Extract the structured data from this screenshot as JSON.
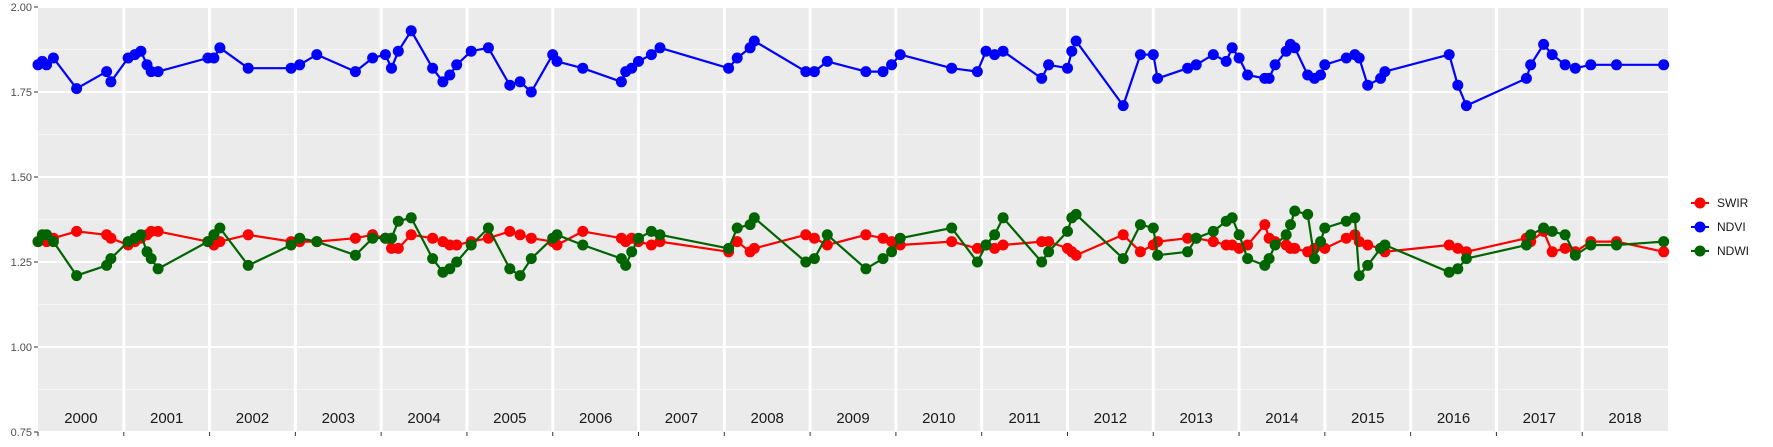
{
  "chart_data": {
    "type": "line",
    "title": "",
    "xlabel": "",
    "ylabel": "",
    "ylim": [
      0.75,
      2.0
    ],
    "yticks": [
      "0.75",
      "1.00",
      "1.25",
      "1.50",
      "1.75",
      "2.00"
    ],
    "ytick_values": [
      0.75,
      1.0,
      1.25,
      1.5,
      1.75,
      2.0
    ],
    "xlim": [
      2000.0,
      2019.0
    ],
    "year_labels": [
      "2000",
      "2001",
      "2002",
      "2003",
      "2004",
      "2005",
      "2006",
      "2007",
      "2008",
      "2009",
      "2010",
      "2011",
      "2012",
      "2013",
      "2014",
      "2015",
      "2016",
      "2017",
      "2018"
    ],
    "year_starts": [
      2000,
      2001,
      2002,
      2003,
      2004,
      2005,
      2006,
      2007,
      2008,
      2009,
      2010,
      2011,
      2012,
      2013,
      2014,
      2015,
      2016,
      2017,
      2018
    ],
    "grid": true,
    "legend_position": "right",
    "series": [
      {
        "name": "SWIR",
        "color": "#ff0000",
        "x": [
          2000.0,
          2000.05,
          2000.1,
          2000.18,
          2000.45,
          2000.8,
          2000.85,
          2001.05,
          2001.13,
          2001.2,
          2001.27,
          2001.32,
          2001.4,
          2001.98,
          2002.05,
          2002.12,
          2002.45,
          2002.95,
          2003.05,
          2003.25,
          2003.7,
          2003.9,
          2004.05,
          2004.12,
          2004.2,
          2004.35,
          2004.6,
          2004.72,
          2004.8,
          2004.88,
          2005.05,
          2005.25,
          2005.5,
          2005.62,
          2005.75,
          2006.0,
          2006.05,
          2006.35,
          2006.8,
          2006.85,
          2006.92,
          2007.0,
          2007.15,
          2007.25,
          2008.05,
          2008.15,
          2008.3,
          2008.35,
          2008.95,
          2009.05,
          2009.2,
          2009.65,
          2009.85,
          2009.95,
          2010.05,
          2010.65,
          2010.95,
          2011.05,
          2011.15,
          2011.25,
          2011.7,
          2011.78,
          2012.0,
          2012.05,
          2012.1,
          2012.65,
          2012.85,
          2013.0,
          2013.05,
          2013.4,
          2013.5,
          2013.7,
          2013.85,
          2013.92,
          2014.0,
          2014.1,
          2014.3,
          2014.35,
          2014.42,
          2014.55,
          2014.6,
          2014.65,
          2014.8,
          2014.88,
          2014.95,
          2015.0,
          2015.25,
          2015.35,
          2015.4,
          2015.5,
          2015.65,
          2015.7,
          2016.45,
          2016.55,
          2016.65,
          2017.35,
          2017.4,
          2017.55,
          2017.65,
          2017.8,
          2017.92,
          2018.1,
          2018.4,
          2018.95
        ],
        "y": [
          1.31,
          1.32,
          1.31,
          1.32,
          1.34,
          1.33,
          1.32,
          1.3,
          1.31,
          1.32,
          1.33,
          1.34,
          1.34,
          1.31,
          1.3,
          1.31,
          1.33,
          1.31,
          1.31,
          1.31,
          1.32,
          1.33,
          1.32,
          1.29,
          1.29,
          1.33,
          1.32,
          1.31,
          1.3,
          1.3,
          1.31,
          1.32,
          1.34,
          1.33,
          1.32,
          1.31,
          1.3,
          1.34,
          1.32,
          1.31,
          1.32,
          1.31,
          1.3,
          1.31,
          1.28,
          1.31,
          1.28,
          1.29,
          1.33,
          1.32,
          1.3,
          1.33,
          1.32,
          1.31,
          1.3,
          1.31,
          1.29,
          1.3,
          1.29,
          1.3,
          1.31,
          1.31,
          1.29,
          1.28,
          1.27,
          1.33,
          1.28,
          1.3,
          1.31,
          1.32,
          1.32,
          1.31,
          1.3,
          1.3,
          1.29,
          1.3,
          1.36,
          1.32,
          1.31,
          1.3,
          1.29,
          1.29,
          1.28,
          1.29,
          1.3,
          1.29,
          1.32,
          1.33,
          1.31,
          1.3,
          1.29,
          1.28,
          1.3,
          1.29,
          1.28,
          1.32,
          1.31,
          1.34,
          1.28,
          1.29,
          1.28,
          1.31,
          1.31,
          1.28
        ]
      },
      {
        "name": "NDVI",
        "color": "#0000ff",
        "x": [
          2000.0,
          2000.05,
          2000.1,
          2000.18,
          2000.45,
          2000.8,
          2000.85,
          2001.05,
          2001.13,
          2001.2,
          2001.27,
          2001.32,
          2001.4,
          2001.98,
          2002.05,
          2002.12,
          2002.45,
          2002.95,
          2003.05,
          2003.25,
          2003.7,
          2003.9,
          2004.05,
          2004.12,
          2004.2,
          2004.35,
          2004.6,
          2004.72,
          2004.8,
          2004.88,
          2005.05,
          2005.25,
          2005.5,
          2005.62,
          2005.75,
          2006.0,
          2006.05,
          2006.35,
          2006.8,
          2006.85,
          2006.92,
          2007.0,
          2007.15,
          2007.25,
          2008.05,
          2008.15,
          2008.3,
          2008.35,
          2008.95,
          2009.05,
          2009.2,
          2009.65,
          2009.85,
          2009.95,
          2010.05,
          2010.65,
          2010.95,
          2011.05,
          2011.15,
          2011.25,
          2011.7,
          2011.78,
          2012.0,
          2012.05,
          2012.1,
          2012.65,
          2012.85,
          2013.0,
          2013.05,
          2013.4,
          2013.5,
          2013.7,
          2013.85,
          2013.92,
          2014.0,
          2014.1,
          2014.3,
          2014.35,
          2014.42,
          2014.55,
          2014.6,
          2014.65,
          2014.8,
          2014.88,
          2014.95,
          2015.0,
          2015.25,
          2015.35,
          2015.4,
          2015.5,
          2015.65,
          2015.7,
          2016.45,
          2016.55,
          2016.65,
          2017.35,
          2017.4,
          2017.55,
          2017.65,
          2017.8,
          2017.92,
          2018.1,
          2018.4,
          2018.95
        ],
        "y": [
          1.83,
          1.84,
          1.83,
          1.85,
          1.76,
          1.81,
          1.78,
          1.85,
          1.86,
          1.87,
          1.83,
          1.81,
          1.81,
          1.85,
          1.85,
          1.88,
          1.82,
          1.82,
          1.83,
          1.86,
          1.81,
          1.85,
          1.86,
          1.82,
          1.87,
          1.93,
          1.82,
          1.78,
          1.8,
          1.83,
          1.87,
          1.88,
          1.77,
          1.78,
          1.75,
          1.86,
          1.84,
          1.82,
          1.78,
          1.81,
          1.82,
          1.84,
          1.86,
          1.88,
          1.82,
          1.85,
          1.88,
          1.9,
          1.81,
          1.81,
          1.84,
          1.81,
          1.81,
          1.83,
          1.86,
          1.82,
          1.81,
          1.87,
          1.86,
          1.87,
          1.79,
          1.83,
          1.82,
          1.87,
          1.9,
          1.71,
          1.86,
          1.86,
          1.79,
          1.82,
          1.83,
          1.86,
          1.84,
          1.88,
          1.85,
          1.8,
          1.79,
          1.79,
          1.83,
          1.87,
          1.89,
          1.88,
          1.8,
          1.79,
          1.8,
          1.83,
          1.85,
          1.86,
          1.85,
          1.77,
          1.79,
          1.81,
          1.86,
          1.77,
          1.71,
          1.79,
          1.83,
          1.89,
          1.86,
          1.83,
          1.82,
          1.83,
          1.83,
          1.83
        ]
      },
      {
        "name": "NDWI",
        "color": "#006400",
        "x": [
          2000.0,
          2000.05,
          2000.1,
          2000.18,
          2000.45,
          2000.8,
          2000.85,
          2001.05,
          2001.13,
          2001.2,
          2001.27,
          2001.32,
          2001.4,
          2001.98,
          2002.05,
          2002.12,
          2002.45,
          2002.95,
          2003.05,
          2003.25,
          2003.7,
          2003.9,
          2004.05,
          2004.12,
          2004.2,
          2004.35,
          2004.6,
          2004.72,
          2004.8,
          2004.88,
          2005.05,
          2005.25,
          2005.5,
          2005.62,
          2005.75,
          2006.0,
          2006.05,
          2006.35,
          2006.8,
          2006.85,
          2006.92,
          2007.0,
          2007.15,
          2007.25,
          2008.05,
          2008.15,
          2008.3,
          2008.35,
          2008.95,
          2009.05,
          2009.2,
          2009.65,
          2009.85,
          2009.95,
          2010.05,
          2010.65,
          2010.95,
          2011.05,
          2011.15,
          2011.25,
          2011.7,
          2011.78,
          2012.0,
          2012.05,
          2012.1,
          2012.65,
          2012.85,
          2013.0,
          2013.05,
          2013.4,
          2013.5,
          2013.7,
          2013.85,
          2013.92,
          2014.0,
          2014.1,
          2014.3,
          2014.35,
          2014.42,
          2014.55,
          2014.6,
          2014.65,
          2014.8,
          2014.88,
          2014.95,
          2015.0,
          2015.25,
          2015.35,
          2015.4,
          2015.5,
          2015.65,
          2015.7,
          2016.45,
          2016.55,
          2016.65,
          2017.35,
          2017.4,
          2017.55,
          2017.65,
          2017.8,
          2017.92,
          2018.1,
          2018.4,
          2018.95
        ],
        "y": [
          1.31,
          1.33,
          1.33,
          1.31,
          1.21,
          1.24,
          1.26,
          1.31,
          1.32,
          1.33,
          1.28,
          1.26,
          1.23,
          1.31,
          1.33,
          1.35,
          1.24,
          1.3,
          1.32,
          1.31,
          1.27,
          1.32,
          1.32,
          1.32,
          1.37,
          1.38,
          1.26,
          1.22,
          1.23,
          1.25,
          1.3,
          1.35,
          1.23,
          1.21,
          1.26,
          1.32,
          1.33,
          1.3,
          1.26,
          1.24,
          1.28,
          1.32,
          1.34,
          1.33,
          1.29,
          1.35,
          1.36,
          1.38,
          1.25,
          1.26,
          1.33,
          1.23,
          1.26,
          1.28,
          1.32,
          1.35,
          1.25,
          1.3,
          1.33,
          1.38,
          1.25,
          1.28,
          1.34,
          1.38,
          1.39,
          1.26,
          1.36,
          1.35,
          1.27,
          1.28,
          1.32,
          1.34,
          1.37,
          1.38,
          1.33,
          1.26,
          1.24,
          1.26,
          1.3,
          1.33,
          1.36,
          1.4,
          1.39,
          1.26,
          1.31,
          1.35,
          1.37,
          1.38,
          1.21,
          1.24,
          1.29,
          1.3,
          1.22,
          1.23,
          1.26,
          1.3,
          1.33,
          1.35,
          1.34,
          1.33,
          1.27,
          1.3,
          1.3,
          1.31
        ]
      }
    ]
  }
}
